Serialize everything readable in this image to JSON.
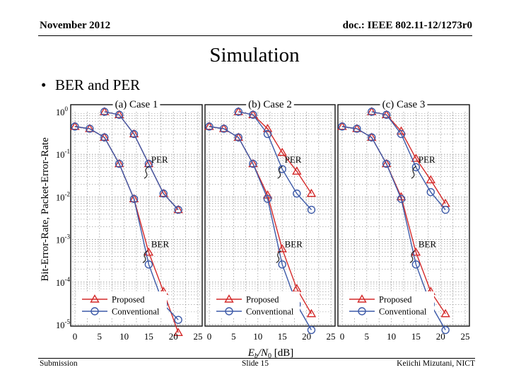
{
  "header": {
    "date": "November 2012",
    "doc_id": "doc.: IEEE 802.11-12/1273r0"
  },
  "title": "Simulation",
  "bullet": {
    "marker": "•",
    "text": "BER and PER"
  },
  "footer": {
    "left": "Submission",
    "center": "Slide 15",
    "right": "Keiichi Mizutani, NICT"
  },
  "chart_data": {
    "type": "line",
    "ylabel": "Bit-Error-Rate, Packet-Error-Rate",
    "xlabel": {
      "main": "E",
      "sub1": "b",
      "mid": "/N",
      "sub2": "0",
      "unit": " [dB]"
    },
    "y_scale": "log",
    "ylim": [
      1e-05,
      1
    ],
    "xlim": [
      0,
      25
    ],
    "xticks": [
      "0",
      "5",
      "10",
      "15",
      "20",
      "25"
    ],
    "yticks": [
      {
        "base": "10",
        "exp": "0"
      },
      {
        "base": "10",
        "exp": "-1"
      },
      {
        "base": "10",
        "exp": "-2"
      },
      {
        "base": "10",
        "exp": "-3"
      },
      {
        "base": "10",
        "exp": "-4"
      },
      {
        "base": "10",
        "exp": "-5"
      }
    ],
    "x": [
      0,
      3,
      6,
      9,
      12,
      15,
      18,
      21
    ],
    "legend": {
      "position": "bottom-left",
      "entries": [
        "Proposed",
        "Conventional"
      ]
    },
    "colors": {
      "proposed": "#d42a2a",
      "conventional": "#3d5aa8",
      "grid": "#8a8a8a"
    },
    "annotation_labels": {
      "per": "PER",
      "ber": "BER"
    },
    "panels": [
      {
        "title": "(a) Case 1",
        "series": [
          {
            "name": "Proposed PER",
            "marker": "triangle",
            "values": [
              null,
              null,
              1.0,
              0.85,
              0.3,
              0.06,
              0.012,
              0.005
            ]
          },
          {
            "name": "Conventional PER",
            "marker": "circle",
            "values": [
              null,
              null,
              1.0,
              0.85,
              0.3,
              0.06,
              0.012,
              0.005
            ]
          },
          {
            "name": "Proposed BER",
            "marker": "triangle",
            "values": [
              0.45,
              0.4,
              0.25,
              0.06,
              0.009,
              0.0005,
              6e-05,
              6.5e-06
            ]
          },
          {
            "name": "Conventional BER",
            "marker": "circle",
            "values": [
              0.45,
              0.4,
              0.25,
              0.06,
              0.009,
              0.00026,
              3e-05,
              1.3e-05
            ]
          }
        ]
      },
      {
        "title": "(b) Case 2",
        "series": [
          {
            "name": "Proposed PER",
            "marker": "triangle",
            "values": [
              null,
              null,
              1.0,
              0.85,
              0.4,
              0.11,
              0.04,
              0.012
            ]
          },
          {
            "name": "Conventional PER",
            "marker": "circle",
            "values": [
              null,
              null,
              1.0,
              0.85,
              0.3,
              0.045,
              0.012,
              0.005
            ]
          },
          {
            "name": "Proposed BER",
            "marker": "triangle",
            "values": [
              0.45,
              0.4,
              0.25,
              0.06,
              0.011,
              0.0006,
              7e-05,
              1.8e-05
            ]
          },
          {
            "name": "Conventional BER",
            "marker": "circle",
            "values": [
              0.45,
              0.4,
              0.25,
              0.06,
              0.009,
              0.00026,
              3e-05,
              7.5e-06
            ]
          }
        ]
      },
      {
        "title": "(c) Case 3",
        "series": [
          {
            "name": "Proposed PER",
            "marker": "triangle",
            "values": [
              null,
              null,
              1.0,
              0.85,
              0.35,
              0.08,
              0.025,
              0.007
            ]
          },
          {
            "name": "Conventional PER",
            "marker": "circle",
            "values": [
              null,
              null,
              1.0,
              0.85,
              0.3,
              0.05,
              0.013,
              0.005
            ]
          },
          {
            "name": "Proposed BER",
            "marker": "triangle",
            "values": [
              0.45,
              0.4,
              0.25,
              0.06,
              0.01,
              0.0005,
              6e-05,
              1.8e-05
            ]
          },
          {
            "name": "Conventional BER",
            "marker": "circle",
            "values": [
              0.45,
              0.4,
              0.25,
              0.06,
              0.009,
              0.00026,
              3e-05,
              7.5e-06
            ]
          }
        ]
      }
    ]
  }
}
